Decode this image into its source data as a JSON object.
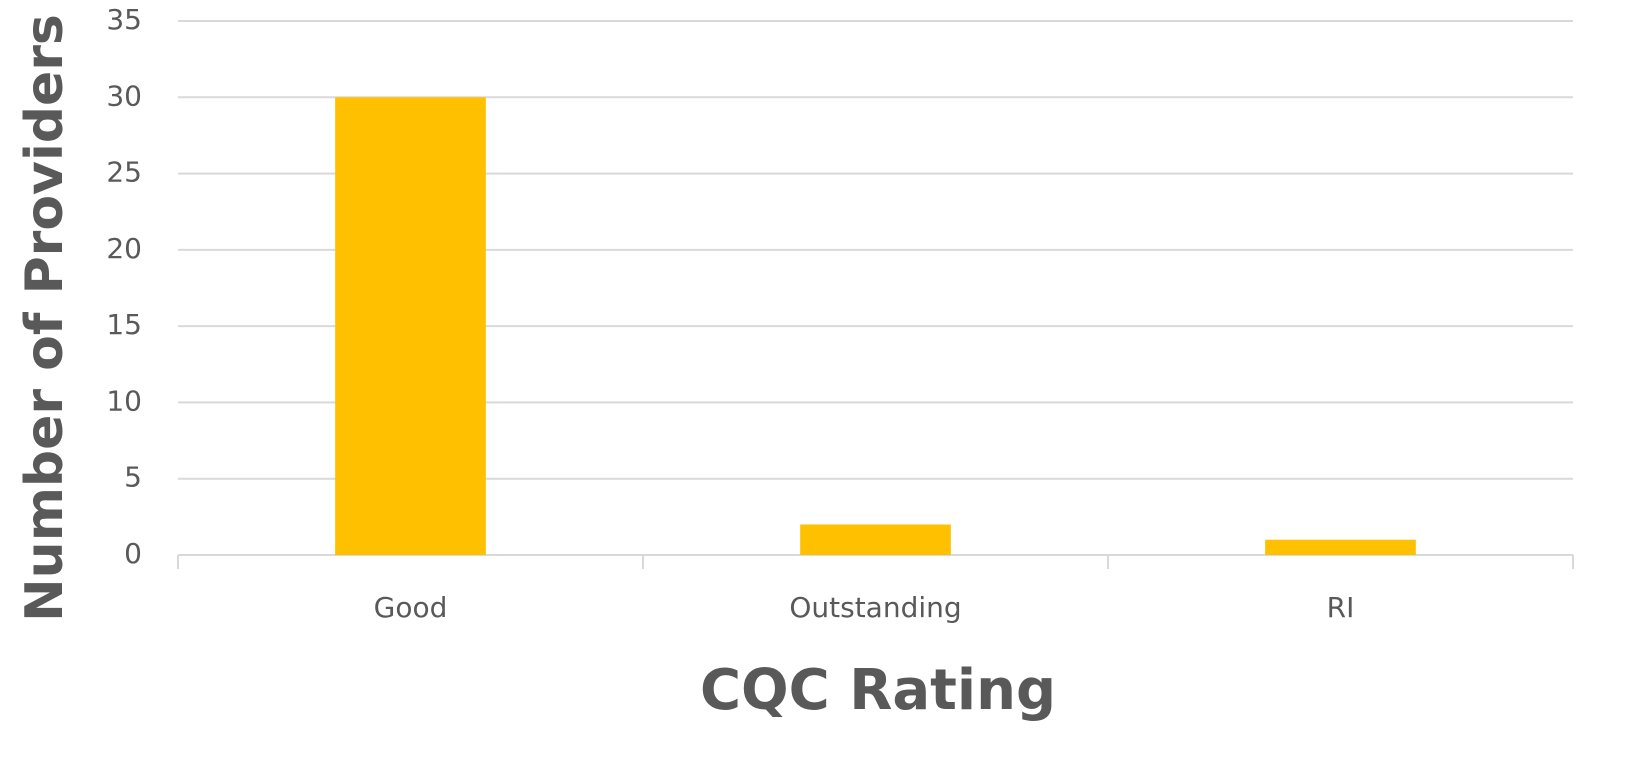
{
  "chart_data": {
    "type": "bar",
    "x_label": "CQC Rating",
    "y_label": "Number of Providers",
    "categories": [
      "Good",
      "Outstanding",
      "RI"
    ],
    "values": [
      30,
      2,
      1
    ],
    "color": "#ffc000",
    "ylim": [
      0,
      35
    ],
    "yticks": [
      0,
      5,
      10,
      15,
      20,
      25,
      30,
      35
    ],
    "grid": true
  }
}
